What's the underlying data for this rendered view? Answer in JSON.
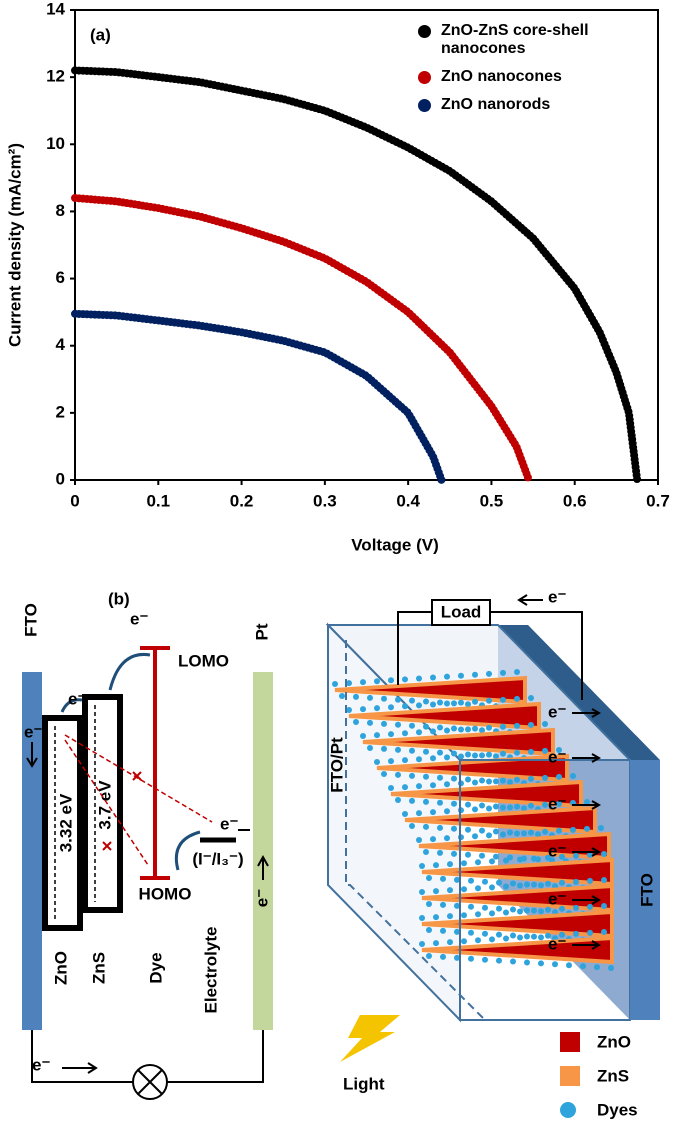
{
  "chart_data": {
    "type": "line",
    "panel_label": "(a)",
    "x_label": "Voltage (V)",
    "y_label": "Current density (mA/cm²)",
    "xlim": [
      0,
      0.7
    ],
    "xticks": [
      0,
      0.1,
      0.2,
      0.3,
      0.4,
      0.5,
      0.6,
      0.7
    ],
    "ylim": [
      0,
      14
    ],
    "yticks": [
      0,
      2,
      4,
      6,
      8,
      10,
      12,
      14
    ],
    "grid": false,
    "series": [
      {
        "name": "ZnO-ZnS core-shell nanocones",
        "color": "#000000",
        "x": [
          0,
          0.05,
          0.1,
          0.15,
          0.2,
          0.25,
          0.3,
          0.35,
          0.4,
          0.45,
          0.5,
          0.55,
          0.6,
          0.63,
          0.65,
          0.665,
          0.675
        ],
        "values": [
          12.2,
          12.15,
          12.0,
          11.85,
          11.6,
          11.35,
          11.0,
          10.5,
          9.9,
          9.2,
          8.3,
          7.2,
          5.7,
          4.4,
          3.2,
          2.0,
          0
        ]
      },
      {
        "name": "ZnO nanocones",
        "color": "#c00000",
        "x": [
          0,
          0.05,
          0.1,
          0.15,
          0.2,
          0.25,
          0.3,
          0.35,
          0.4,
          0.45,
          0.5,
          0.53,
          0.545
        ],
        "values": [
          8.4,
          8.3,
          8.1,
          7.85,
          7.5,
          7.1,
          6.6,
          5.9,
          5.0,
          3.8,
          2.2,
          1.0,
          0
        ]
      },
      {
        "name": "ZnO nanorods",
        "color": "#002060",
        "x": [
          0,
          0.05,
          0.1,
          0.15,
          0.2,
          0.25,
          0.3,
          0.35,
          0.4,
          0.43,
          0.44
        ],
        "values": [
          4.95,
          4.9,
          4.75,
          4.6,
          4.4,
          4.15,
          3.8,
          3.1,
          2.0,
          0.7,
          0
        ]
      }
    ]
  },
  "diagram": {
    "panel_label": "(b)",
    "fto": "FTO",
    "pt": "Pt",
    "lomo": "LOMO",
    "homo": "HOMO",
    "gap_zno": "3.32 eV",
    "gap_zns": "3.7 eV",
    "zno": "ZnO",
    "zns": "ZnS",
    "dye": "Dye",
    "electrolyte": "Electrolyte",
    "redox": "(I⁻/I₃⁻)",
    "load": "Load",
    "fto_pt": "FTO/Pt",
    "fto_right": "FTO",
    "light": "Light",
    "legend": [
      "ZnO",
      "ZnS",
      "Dyes"
    ],
    "electron_labels": [
      "e⁻",
      "e⁻",
      "e⁻",
      "e⁻",
      "e⁻",
      "e⁻",
      "e⁻",
      "e⁻",
      "e⁻",
      "e⁻",
      "e⁻",
      "e⁻",
      "e⁻"
    ]
  }
}
